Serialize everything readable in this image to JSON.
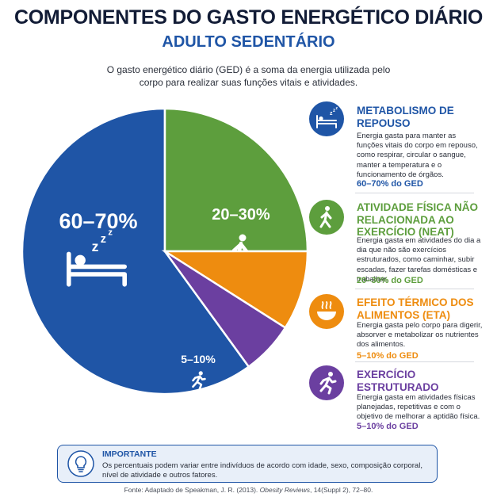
{
  "header": {
    "title": "COMPONENTES DO GASTO ENERGÉTICO DIÁRIO",
    "subtitle": "ADULTO SEDENTÁRIO",
    "intro": "O gasto energético diário (GED) é a soma da energia utilizada pelo corpo para realizar suas funções vitais e atividades."
  },
  "colors": {
    "title": "#121c36",
    "accent": "#1f55a6",
    "rest": "#1f55a6",
    "neat": "#5d9e3d",
    "eta": "#ee8c0f",
    "exercise": "#6b3fa0"
  },
  "chart_data": {
    "type": "pie",
    "slices": [
      {
        "id": "rest",
        "label": "60–70%",
        "value": 60,
        "color": "#1f55a6",
        "icon": "sleeping-person-icon"
      },
      {
        "id": "neat",
        "label": "20–30%",
        "value": 25,
        "color": "#5d9e3d",
        "icon": "walking-person-icon"
      },
      {
        "id": "eta",
        "label": "5–10%",
        "value": 9,
        "color": "#ee8c0f",
        "icon": "hot-bowl-icon"
      },
      {
        "id": "exercise",
        "label": "5–10%",
        "value": 6,
        "color": "#6b3fa0",
        "icon": "running-person-icon"
      }
    ]
  },
  "panels": [
    {
      "title": "METABOLISMO DE REPOUSO",
      "desc": "Energia gasta para manter as funções vitais do corpo em repouso, como respirar, circular o sangue, manter a temperatura e o funcionamento de órgãos.",
      "pct": "60–70% do GED",
      "color": "#1f55a6",
      "icon": "sleeping-person-icon"
    },
    {
      "title": "ATIVIDADE FÍSICA NÃO RELACIONADA AO EXERCÍCIO (NEAT)",
      "desc": "Energia gasta em atividades do dia a dia que não são exercícios estruturados, como caminhar, subir escadas, fazer tarefas domésticas e trabalhar.",
      "pct": "20–30% do GED",
      "color": "#5d9e3d",
      "icon": "walking-person-icon"
    },
    {
      "title": "EFEITO TÉRMICO DOS ALIMENTOS (ETA)",
      "desc": "Energia gasta pelo corpo para digerir, absorver e metabolizar os nutrientes dos alimentos.",
      "pct": "5–10% do GED",
      "color": "#ee8c0f",
      "icon": "hot-bowl-icon"
    },
    {
      "title": "EXERCÍCIO ESTRUTURADO",
      "desc": "Energia gasta em atividades físicas planejadas, repetitivas e com o objetivo de melhorar a aptidão física.",
      "pct": "5–10% do GED",
      "color": "#6b3fa0",
      "icon": "running-person-icon"
    }
  ],
  "note": {
    "heading": "IMPORTANTE",
    "text": "Os percentuais podem variar entre indivíduos de acordo com idade, sexo, composição corporal, nível de atividade e outros fatores.",
    "icon": "lightbulb-icon"
  },
  "source": {
    "prefix": "Fonte: Adaptado de Speakman, J. R. (2013). ",
    "journal": "Obesity Reviews",
    "suffix": ", 14(Suppl 2), 72–80."
  }
}
